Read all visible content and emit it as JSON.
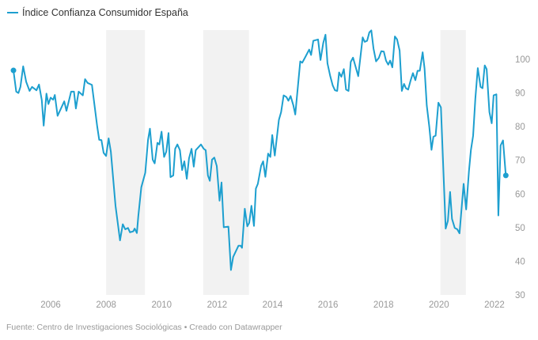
{
  "chart_data": {
    "type": "line",
    "title": "",
    "legend": [
      {
        "label": "Índice Confianza Consumidor España",
        "color": "#1d9fcf"
      }
    ],
    "legend_placement": "top-left",
    "xlabel": "",
    "ylabel": "",
    "xlim": [
      2004.6,
      2022.5
    ],
    "ylim": [
      30,
      110
    ],
    "grid": false,
    "x_ticks": [
      "2006",
      "2008",
      "2010",
      "2012",
      "2014",
      "2016",
      "2018",
      "2020",
      "2022"
    ],
    "y_ticks": [
      "100",
      "90",
      "80",
      "70",
      "60",
      "50",
      "40",
      "30"
    ],
    "y_axis_side": "right",
    "shaded_periods": [
      [
        2008.0,
        2009.4
      ],
      [
        2011.5,
        2013.15
      ],
      [
        2020.05,
        2020.97
      ]
    ],
    "series": [
      {
        "name": "Índice Confianza Consumidor España",
        "color": "#1d9fcf",
        "x": [
          2004.66,
          2004.76,
          2004.84,
          2004.91,
          2005.01,
          2005.12,
          2005.24,
          2005.33,
          2005.49,
          2005.58,
          2005.68,
          2005.75,
          2005.85,
          2005.92,
          2006.0,
          2006.09,
          2006.15,
          2006.25,
          2006.49,
          2006.57,
          2006.74,
          2006.84,
          2006.91,
          2007.01,
          2007.16,
          2007.24,
          2007.33,
          2007.49,
          2007.68,
          2007.75,
          2007.83,
          2007.91,
          2008.0,
          2008.09,
          2008.17,
          2008.34,
          2008.5,
          2008.6,
          2008.69,
          2008.79,
          2008.86,
          2008.98,
          2009.03,
          2009.11,
          2009.16,
          2009.27,
          2009.41,
          2009.51,
          2009.58,
          2009.68,
          2009.75,
          2009.85,
          2009.92,
          2010.0,
          2010.09,
          2010.17,
          2010.25,
          2010.32,
          2010.42,
          2010.49,
          2010.57,
          2010.66,
          2010.74,
          2010.82,
          2010.91,
          2010.99,
          2011.08,
          2011.16,
          2011.23,
          2011.42,
          2011.52,
          2011.59,
          2011.67,
          2011.74,
          2011.82,
          2011.9,
          2011.99,
          2012.09,
          2012.16,
          2012.24,
          2012.41,
          2012.5,
          2012.58,
          2012.77,
          2012.85,
          2012.9,
          2013.0,
          2013.09,
          2013.16,
          2013.24,
          2013.33,
          2013.4,
          2013.47,
          2013.59,
          2013.66,
          2013.74,
          2013.84,
          2013.92,
          2013.99,
          2014.08,
          2014.23,
          2014.31,
          2014.4,
          2014.5,
          2014.57,
          2014.65,
          2014.75,
          2014.82,
          2015.0,
          2015.07,
          2015.17,
          2015.32,
          2015.39,
          2015.47,
          2015.64,
          2015.73,
          2015.83,
          2015.91,
          2015.98,
          2016.08,
          2016.17,
          2016.25,
          2016.33,
          2016.4,
          2016.48,
          2016.57,
          2016.65,
          2016.74,
          2016.82,
          2016.9,
          2016.99,
          2017.09,
          2017.25,
          2017.32,
          2017.41,
          2017.49,
          2017.56,
          2017.64,
          2017.73,
          2017.83,
          2017.92,
          2018.01,
          2018.09,
          2018.17,
          2018.24,
          2018.32,
          2018.41,
          2018.49,
          2018.58,
          2018.66,
          2018.74,
          2018.81,
          2018.89,
          2018.98,
          2019.06,
          2019.15,
          2019.23,
          2019.31,
          2019.41,
          2019.48,
          2019.56,
          2019.65,
          2019.73,
          2019.8,
          2019.88,
          2019.98,
          2020.07,
          2020.24,
          2020.32,
          2020.4,
          2020.47,
          2020.57,
          2020.66,
          2020.74,
          2020.89,
          2020.98,
          2021.08,
          2021.15,
          2021.23,
          2021.31,
          2021.4,
          2021.5,
          2021.57,
          2021.65,
          2021.72,
          2021.82,
          2021.9,
          2021.97,
          2022.07,
          2022.14,
          2022.22,
          2022.31,
          2022.41
        ],
        "values": [
          96.7,
          90.4,
          90,
          91.8,
          97.9,
          93.3,
          90.6,
          91.8,
          90.8,
          92.5,
          87.9,
          80.3,
          89.8,
          86.7,
          88.6,
          88,
          89.4,
          83.2,
          87.5,
          84.7,
          90.4,
          90.4,
          85.4,
          90.4,
          89.3,
          94.1,
          93,
          92.4,
          80,
          76.1,
          76,
          72.2,
          71.3,
          76.5,
          72.6,
          56.5,
          46.2,
          51,
          49.5,
          49.9,
          48.6,
          48.9,
          49.7,
          48.4,
          53.4,
          62,
          66.3,
          76.1,
          79.4,
          70.2,
          69.1,
          75.2,
          74.7,
          78.5,
          71,
          72.6,
          78.1,
          65,
          65.5,
          73.4,
          74.7,
          73,
          67.1,
          69.7,
          64.5,
          70.6,
          73.4,
          68.1,
          73,
          74.7,
          73.4,
          73,
          65.5,
          63.9,
          70.2,
          70.8,
          68.3,
          58,
          63.4,
          50.1,
          50.3,
          37.4,
          41.3,
          44.6,
          44.6,
          44,
          55.6,
          50.4,
          51.4,
          56.5,
          50.5,
          61.6,
          63,
          68.4,
          69.7,
          65.1,
          72,
          71,
          77.5,
          71.4,
          82,
          84.3,
          89.3,
          88.8,
          87.7,
          89.1,
          86.3,
          83.6,
          99.4,
          99,
          100.5,
          102.9,
          101.3,
          105.5,
          105.9,
          99.8,
          104.9,
          107.3,
          98.8,
          95,
          92.2,
          90.8,
          90.6,
          96.1,
          94.8,
          97.1,
          91,
          90.6,
          99.2,
          100.5,
          97.9,
          95,
          106.5,
          105.2,
          105.5,
          108,
          108.6,
          103.2,
          99.4,
          100.4,
          102.4,
          102.3,
          99.6,
          98.4,
          99.6,
          97.6,
          106.8,
          105.9,
          102.6,
          90.6,
          92.7,
          91.4,
          91,
          93.8,
          95.9,
          93.8,
          96.6,
          96.6,
          102.1,
          97.3,
          86.3,
          80,
          73.1,
          77,
          77.3,
          87.1,
          85.7,
          49.7,
          52,
          60.6,
          52.6,
          49.9,
          49.5,
          48.3,
          63,
          55.4,
          66.7,
          73,
          77.3,
          88.3,
          97.4,
          91.8,
          91.4,
          98.2,
          97.1,
          84.3,
          81,
          89.3,
          89.6,
          53.6,
          74.4,
          75.9,
          65.5
        ]
      }
    ],
    "footer": "Fuente: Centro de Investigaciones Sociológicas • Creado con Datawrapper"
  }
}
